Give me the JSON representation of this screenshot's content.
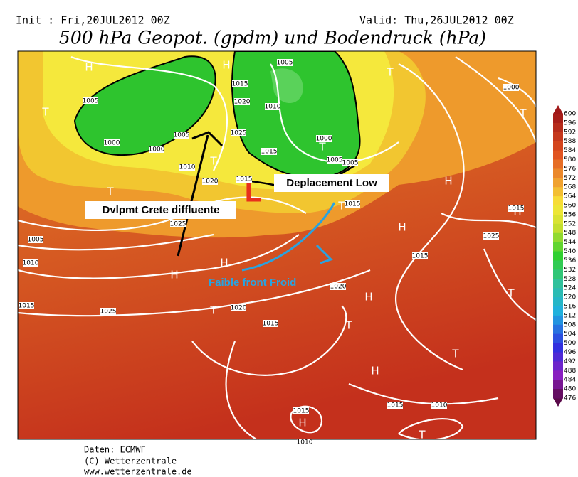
{
  "header": {
    "init": "Init : Fri,20JUL2012 00Z",
    "valid": "Valid: Thu,26JUL2012 00Z",
    "title": "500 hPa Geopot. (gpdm) und Bodendruck (hPa)"
  },
  "annotations": {
    "ridge": "Dvlpmt Crete diffluente",
    "low_move": "Deplacement Low",
    "front": "Faible front Froid",
    "low": "L"
  },
  "symbols": [
    "H",
    "T",
    "H",
    "T",
    "T",
    "T",
    "T",
    "T",
    "H",
    "H",
    "H",
    "H",
    "H",
    "T",
    "H",
    "T",
    "T",
    "T",
    "H",
    "H",
    "T",
    "T"
  ],
  "isobar_labels": [
    1005,
    1015,
    1020,
    1010,
    1025,
    1015,
    1000,
    1005,
    1005,
    1005,
    1000,
    1000,
    1005,
    1010,
    1020,
    1015,
    1025,
    1005,
    1010,
    1015,
    1025,
    1020,
    1015,
    1020,
    1015,
    1025,
    1015,
    1000,
    1015,
    1010,
    1015,
    1010,
    1015
  ],
  "colorbar": {
    "labels": [
      600,
      596,
      592,
      588,
      584,
      580,
      576,
      572,
      568,
      564,
      560,
      556,
      552,
      548,
      544,
      540,
      536,
      532,
      528,
      524,
      520,
      516,
      512,
      508,
      504,
      500,
      496,
      492,
      488,
      484,
      480,
      476
    ]
  },
  "footer": [
    "Daten: ECMWF",
    "(C) Wetterzentrale",
    "www.wetterzentrale.de"
  ]
}
